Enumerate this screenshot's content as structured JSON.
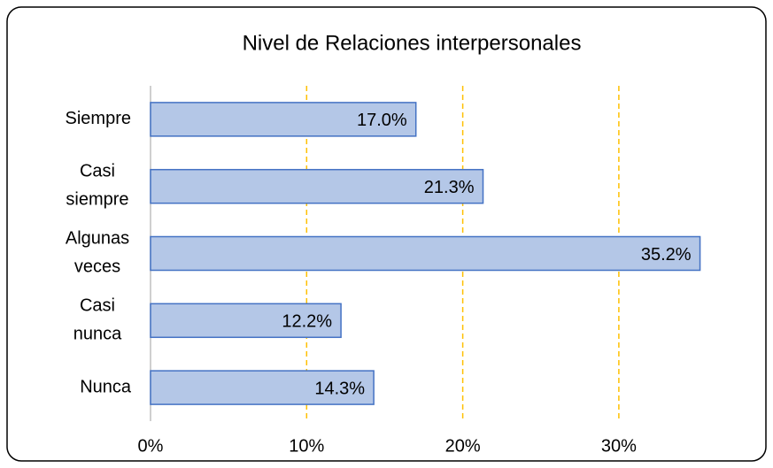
{
  "chart_data": {
    "type": "barh",
    "title": "Nivel de Relaciones interpersonales",
    "categories": [
      "Siempre",
      "Casi siempre",
      "Algunas veces",
      "Casi nunca",
      "Nunca"
    ],
    "values": [
      17.0,
      21.3,
      35.2,
      12.2,
      14.3
    ],
    "value_labels": [
      "17.0%",
      "21.3%",
      "35.2%",
      "12.2%",
      "14.3%"
    ],
    "color": "#b4c7e7",
    "xlim": [
      0,
      36
    ],
    "xticks": [
      {
        "value": 0,
        "label": "0%"
      },
      {
        "value": 10,
        "label": "10%"
      },
      {
        "value": 20,
        "label": "20%"
      },
      {
        "value": 30,
        "label": "30%"
      }
    ],
    "grid": true
  }
}
